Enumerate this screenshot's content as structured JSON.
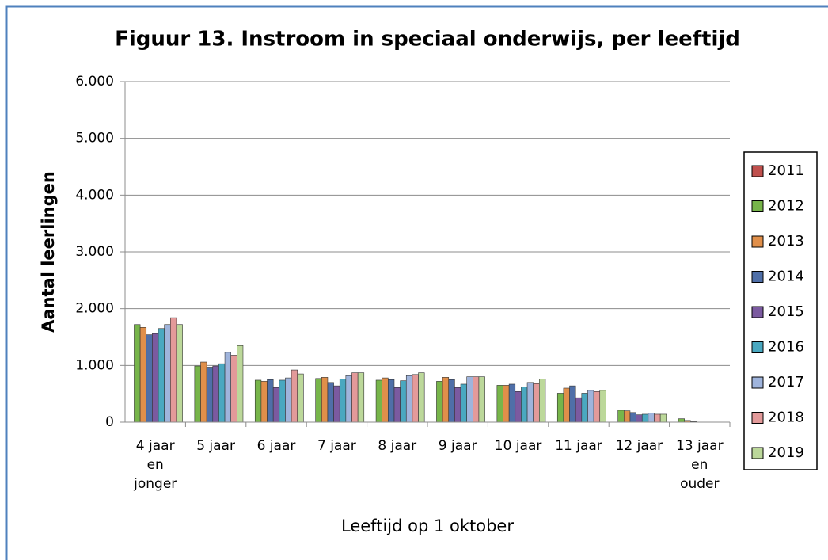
{
  "chart_data": {
    "type": "bar",
    "title": "Figuur 13. Instroom in speciaal onderwijs, per leeftijd",
    "x_label": "Leeftijd op 1 oktober",
    "y_label": "Aantal leerlingen",
    "categories": [
      "4 jaar\nen\njonger",
      "5 jaar",
      "6 jaar",
      "7 jaar",
      "8 jaar",
      "9 jaar",
      "10 jaar",
      "11 jaar",
      "12 jaar",
      "13 jaar\nen\nouder"
    ],
    "series": [
      {
        "name": "2011",
        "color": "#c0504d",
        "values": [
          0,
          0,
          0,
          0,
          0,
          0,
          0,
          0,
          0,
          0
        ]
      },
      {
        "name": "2012",
        "color": "#77b54a",
        "values": [
          1720,
          990,
          740,
          770,
          740,
          720,
          650,
          510,
          210,
          60
        ]
      },
      {
        "name": "2013",
        "color": "#e08f4a",
        "values": [
          1670,
          1060,
          720,
          790,
          780,
          790,
          650,
          600,
          200,
          30
        ]
      },
      {
        "name": "2014",
        "color": "#4f6fa8",
        "values": [
          1540,
          970,
          750,
          700,
          750,
          750,
          670,
          640,
          170,
          10
        ]
      },
      {
        "name": "2015",
        "color": "#7b5aa0",
        "values": [
          1560,
          990,
          610,
          640,
          610,
          610,
          540,
          430,
          130,
          0
        ]
      },
      {
        "name": "2016",
        "color": "#4aa8c0",
        "values": [
          1650,
          1030,
          740,
          760,
          730,
          670,
          620,
          510,
          140,
          0
        ]
      },
      {
        "name": "2017",
        "color": "#9fb4dc",
        "values": [
          1720,
          1230,
          780,
          820,
          820,
          800,
          700,
          560,
          160,
          0
        ]
      },
      {
        "name": "2018",
        "color": "#e39a9a",
        "values": [
          1840,
          1180,
          920,
          870,
          840,
          800,
          680,
          540,
          140,
          0
        ]
      },
      {
        "name": "2019",
        "color": "#bcd89a",
        "values": [
          1720,
          1350,
          850,
          870,
          870,
          800,
          760,
          560,
          140,
          0
        ]
      }
    ],
    "ylim": [
      0,
      6000
    ],
    "yticks": [
      0,
      {
        "value": 1000,
        "label": "1.000"
      },
      {
        "value": 2000,
        "label": "2.000"
      },
      {
        "value": 3000,
        "label": "3.000"
      },
      {
        "value": 4000,
        "label": "4.000"
      },
      {
        "value": 5000,
        "label": "5.000"
      },
      {
        "value": 6000,
        "label": "6.000"
      }
    ],
    "grid": true,
    "legend": "right"
  }
}
